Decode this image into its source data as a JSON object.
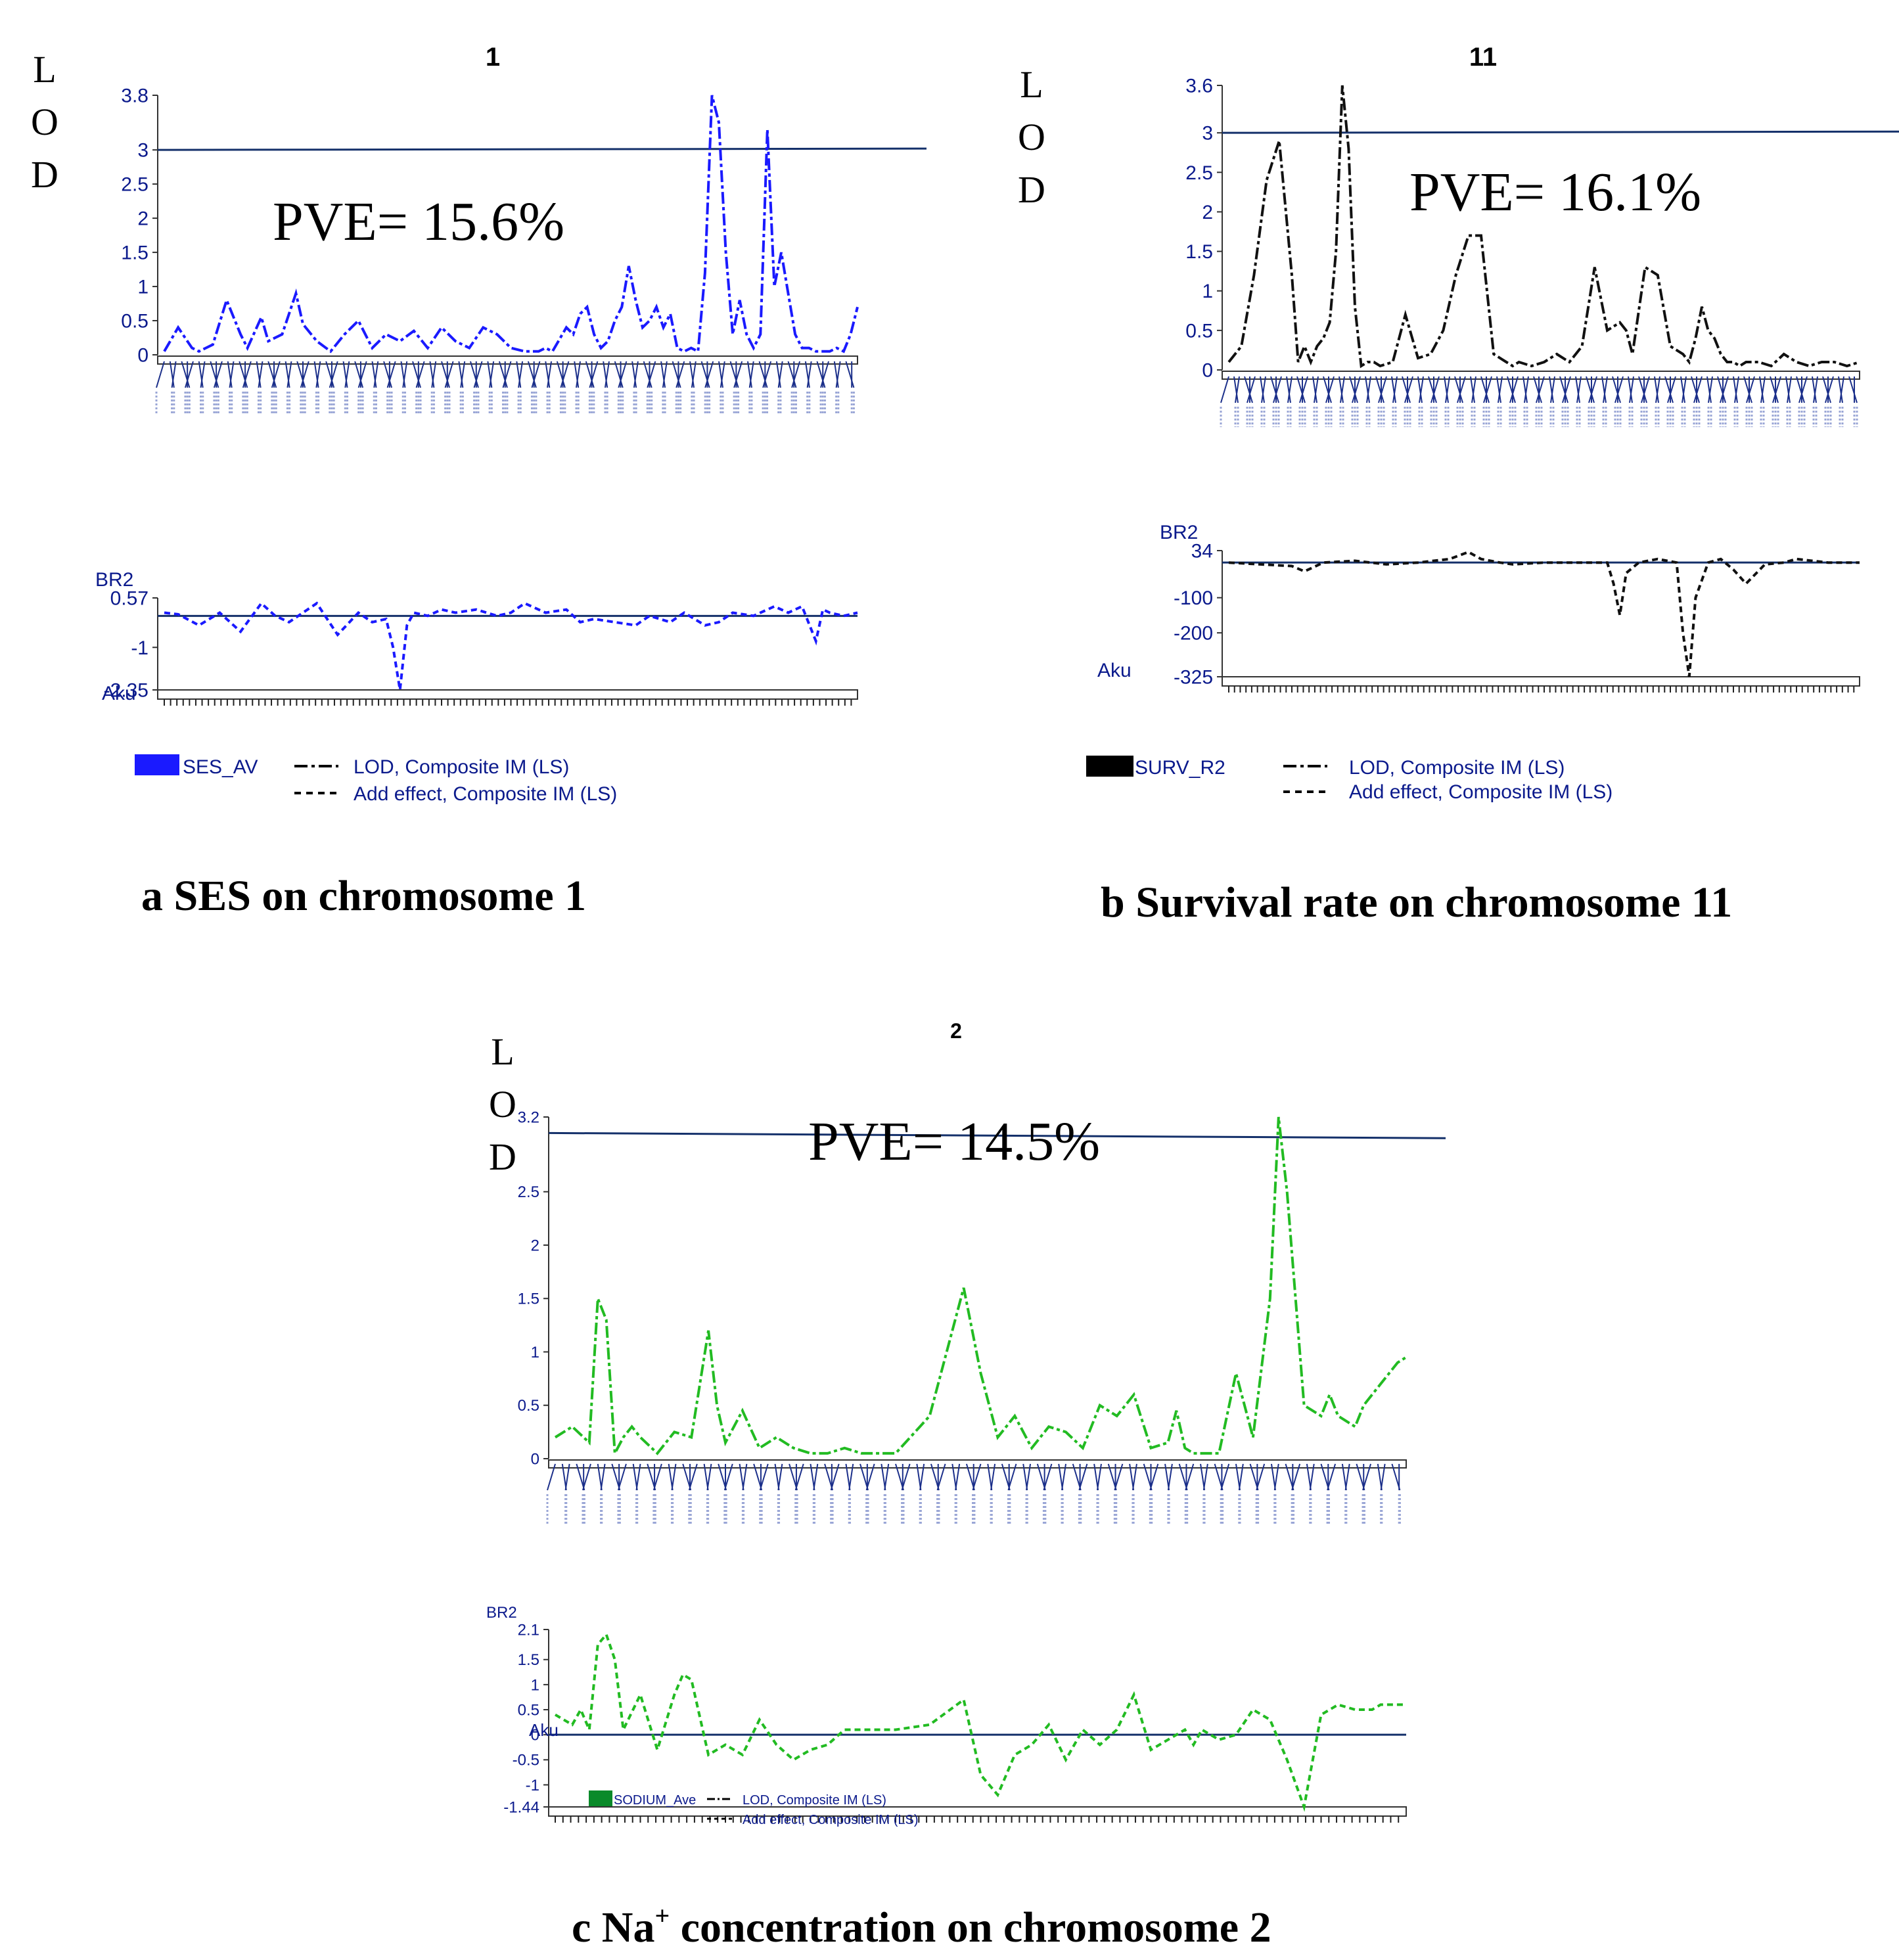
{
  "chart_data": [
    {
      "id": "a",
      "type": "line",
      "title": "1",
      "ylabel": "LOD",
      "pve_text": "PVE= 15.6%",
      "caption": "a SES on chromosome 1",
      "lod": {
        "yticks": [
          "3.8",
          "3",
          "2.5",
          "2",
          "1.5",
          "1",
          "0.5",
          "0"
        ],
        "ylim": [
          0,
          3.8
        ],
        "threshold": 3.0,
        "x": [
          0,
          2,
          4,
          5,
          7,
          9,
          11,
          12,
          14,
          15,
          17,
          19,
          20,
          22,
          24,
          26,
          28,
          30,
          32,
          34,
          36,
          38,
          40,
          42,
          44,
          46,
          48,
          50,
          52,
          54,
          55,
          56,
          58,
          59,
          60,
          61,
          62,
          63,
          64,
          65,
          66,
          67,
          68,
          69,
          70,
          71,
          72,
          73,
          74,
          75,
          76,
          77,
          78,
          79,
          80,
          81,
          82,
          83,
          84,
          85,
          86,
          87,
          88,
          89,
          90,
          91,
          92,
          93,
          94,
          95,
          96,
          97,
          98,
          99,
          100
        ],
        "values": [
          0.05,
          0.4,
          0.1,
          0.05,
          0.15,
          0.8,
          0.3,
          0.1,
          0.55,
          0.2,
          0.3,
          0.9,
          0.45,
          0.2,
          0.05,
          0.3,
          0.5,
          0.1,
          0.3,
          0.2,
          0.35,
          0.1,
          0.4,
          0.2,
          0.1,
          0.4,
          0.3,
          0.1,
          0.05,
          0.05,
          0.1,
          0.05,
          0.4,
          0.3,
          0.6,
          0.7,
          0.3,
          0.1,
          0.2,
          0.5,
          0.7,
          1.3,
          0.8,
          0.4,
          0.5,
          0.7,
          0.4,
          0.6,
          0.1,
          0.05,
          0.1,
          0.05,
          1.2,
          3.8,
          3.4,
          1.5,
          0.3,
          0.8,
          0.3,
          0.1,
          0.3,
          3.3,
          1.0,
          1.5,
          0.9,
          0.3,
          0.1,
          0.1,
          0.05,
          0.05,
          0.05,
          0.1,
          0.05,
          0.3,
          0.7
        ]
      },
      "effect": {
        "yticks": [
          "0.57",
          "-1",
          "-2.35"
        ],
        "ylim": [
          -2.35,
          0.57
        ],
        "baseline": 0,
        "x": [
          0,
          2,
          5,
          8,
          11,
          14,
          16,
          18,
          20,
          22,
          25,
          28,
          30,
          32,
          33,
          34,
          35,
          36,
          38,
          40,
          42,
          45,
          48,
          50,
          52,
          55,
          58,
          60,
          62,
          65,
          68,
          70,
          73,
          75,
          78,
          80,
          82,
          85,
          88,
          90,
          92,
          94,
          95,
          96,
          98,
          100
        ],
        "values": [
          0.1,
          0.05,
          -0.3,
          0.1,
          -0.5,
          0.4,
          0.0,
          -0.2,
          0.1,
          0.4,
          -0.6,
          0.1,
          -0.2,
          -0.1,
          -1.0,
          -2.35,
          -0.3,
          0.1,
          0.0,
          0.2,
          0.1,
          0.2,
          0.0,
          0.1,
          0.4,
          0.1,
          0.2,
          -0.2,
          -0.1,
          -0.2,
          -0.3,
          0.0,
          -0.2,
          0.1,
          -0.3,
          -0.2,
          0.1,
          0.0,
          0.3,
          0.1,
          0.3,
          -0.8,
          0.2,
          0.1,
          0.0,
          0.1
        ]
      },
      "x_axis_label": "Aku",
      "legend": {
        "trait": "SES_AV",
        "trait_color": "#1a1aff",
        "lod_label": "LOD, Composite IM (LS)",
        "effect_label": "Add effect, Composite IM (LS)"
      },
      "line_color": "#1a1aff"
    },
    {
      "id": "b",
      "type": "line",
      "title": "11",
      "ylabel": "LOD",
      "pve_text": "PVE= 16.1%",
      "caption": "b  Survival rate on chromosome 11",
      "lod": {
        "yticks": [
          "3.6",
          "3",
          "2.5",
          "2",
          "1.5",
          "1",
          "0.5",
          "0"
        ],
        "ylim": [
          0,
          3.6
        ],
        "threshold": 3.0,
        "x": [
          0,
          2,
          4,
          6,
          8,
          10,
          11,
          12,
          13,
          14,
          15,
          16,
          17,
          18,
          19,
          20,
          21,
          22,
          23,
          24,
          26,
          28,
          30,
          32,
          34,
          36,
          38,
          40,
          42,
          44,
          45,
          46,
          48,
          50,
          52,
          54,
          56,
          58,
          60,
          62,
          63,
          64,
          66,
          68,
          70,
          72,
          73,
          74,
          75,
          76,
          77,
          78,
          79,
          80,
          81,
          82,
          84,
          86,
          88,
          90,
          92,
          94,
          96,
          98,
          100
        ],
        "values": [
          0.1,
          0.3,
          1.2,
          2.4,
          2.9,
          1.2,
          0.1,
          0.3,
          0.1,
          0.3,
          0.4,
          0.6,
          1.5,
          3.6,
          2.8,
          0.8,
          0.05,
          0.1,
          0.1,
          0.05,
          0.1,
          0.7,
          0.15,
          0.2,
          0.5,
          1.2,
          1.7,
          1.7,
          0.2,
          0.1,
          0.05,
          0.1,
          0.05,
          0.1,
          0.2,
          0.1,
          0.3,
          1.3,
          0.5,
          0.6,
          0.5,
          0.2,
          1.3,
          1.2,
          0.3,
          0.2,
          0.1,
          0.4,
          0.8,
          0.5,
          0.4,
          0.2,
          0.1,
          0.1,
          0.05,
          0.1,
          0.1,
          0.05,
          0.2,
          0.1,
          0.05,
          0.1,
          0.1,
          0.05,
          0.1
        ]
      },
      "effect": {
        "yticks": [
          "34",
          "-100",
          "-200",
          "-325"
        ],
        "ylim": [
          -325,
          34
        ],
        "baseline": 0,
        "x": [
          0,
          5,
          10,
          12,
          15,
          20,
          25,
          30,
          35,
          38,
          40,
          43,
          45,
          50,
          55,
          60,
          61,
          62,
          63,
          65,
          68,
          71,
          72,
          73,
          74,
          76,
          78,
          80,
          82,
          85,
          88,
          90,
          95,
          100
        ],
        "values": [
          0,
          -5,
          -10,
          -25,
          0,
          5,
          -5,
          0,
          10,
          30,
          10,
          0,
          -5,
          0,
          0,
          0,
          -60,
          -150,
          -30,
          0,
          10,
          0,
          -200,
          -325,
          -100,
          0,
          10,
          -20,
          -60,
          -5,
          0,
          10,
          0,
          0
        ]
      },
      "x_axis_label": "Aku",
      "legend": {
        "trait": "SURV_R2",
        "trait_color": "#000000",
        "lod_label": "LOD, Composite IM (LS)",
        "effect_label": "Add effect, Composite IM (LS)"
      },
      "line_color": "#111111"
    },
    {
      "id": "c",
      "type": "line",
      "title": "2",
      "ylabel": "LOD",
      "pve_text": "PVE= 14.5%",
      "caption_prefix": "c  Na",
      "caption_sup": "+",
      "caption_suffix": " concentration on chromosome 2",
      "lod": {
        "yticks": [
          "3.2",
          "2.5",
          "2",
          "1.5",
          "1",
          "0.5",
          "0"
        ],
        "ylim": [
          0,
          3.2
        ],
        "threshold": 3.05,
        "x": [
          0,
          2,
          4,
          5,
          6,
          7,
          8,
          9,
          10,
          12,
          14,
          16,
          18,
          19,
          20,
          21,
          22,
          24,
          26,
          28,
          30,
          32,
          34,
          36,
          38,
          40,
          44,
          48,
          50,
          52,
          54,
          56,
          58,
          60,
          62,
          64,
          66,
          68,
          70,
          72,
          73,
          74,
          75,
          76,
          78,
          80,
          82,
          84,
          85,
          86,
          88,
          90,
          91,
          92,
          94,
          95,
          96,
          97,
          98,
          99,
          100
        ],
        "values": [
          0.2,
          0.3,
          0.15,
          1.5,
          1.3,
          0.05,
          0.2,
          0.3,
          0.2,
          0.05,
          0.25,
          0.2,
          1.2,
          0.5,
          0.15,
          0.3,
          0.45,
          0.1,
          0.2,
          0.1,
          0.05,
          0.05,
          0.1,
          0.05,
          0.05,
          0.05,
          0.4,
          1.6,
          0.8,
          0.2,
          0.4,
          0.1,
          0.3,
          0.25,
          0.1,
          0.5,
          0.4,
          0.6,
          0.1,
          0.15,
          0.45,
          0.1,
          0.05,
          0.05,
          0.05,
          0.8,
          0.2,
          1.5,
          3.2,
          2.5,
          0.5,
          0.4,
          0.6,
          0.4,
          0.3,
          0.5,
          0.6,
          0.7,
          0.8,
          0.9,
          0.95
        ]
      },
      "effect": {
        "yticks": [
          "2.1",
          "1.5",
          "1",
          "0.5",
          "0",
          "-0.5",
          "-1",
          "-1.44"
        ],
        "ylim": [
          -1.44,
          2.1
        ],
        "baseline": 0,
        "x": [
          0,
          2,
          3,
          4,
          5,
          6,
          7,
          8,
          10,
          12,
          14,
          15,
          16,
          18,
          20,
          22,
          24,
          26,
          28,
          30,
          32,
          34,
          36,
          40,
          44,
          48,
          50,
          52,
          54,
          55,
          56,
          58,
          60,
          62,
          64,
          66,
          68,
          70,
          72,
          74,
          75,
          76,
          78,
          80,
          82,
          84,
          86,
          88,
          90,
          92,
          94,
          96,
          97,
          98,
          100
        ],
        "values": [
          0.4,
          0.2,
          0.5,
          0.1,
          1.8,
          2.0,
          1.5,
          0.1,
          0.8,
          -0.3,
          0.8,
          1.2,
          1.1,
          -0.4,
          -0.2,
          -0.4,
          0.3,
          -0.2,
          -0.5,
          -0.3,
          -0.2,
          0.1,
          0.1,
          0.1,
          0.2,
          0.7,
          -0.8,
          -1.2,
          -0.4,
          -0.3,
          -0.2,
          0.2,
          -0.5,
          0.1,
          -0.2,
          0.1,
          0.8,
          -0.3,
          -0.1,
          0.1,
          -0.2,
          0.1,
          -0.1,
          0.0,
          0.5,
          0.3,
          -0.5,
          -1.44,
          0.4,
          0.6,
          0.5,
          0.5,
          0.6,
          0.6,
          0.6
        ]
      },
      "x_axis_label": "Aku",
      "legend": {
        "trait": "SODIUM_Ave",
        "trait_color": "#0a8a2a",
        "lod_label": "LOD, Composite IM (LS)",
        "effect_label": "Add effect, Composite IM (LS)"
      },
      "line_color": "#22bb22"
    }
  ]
}
